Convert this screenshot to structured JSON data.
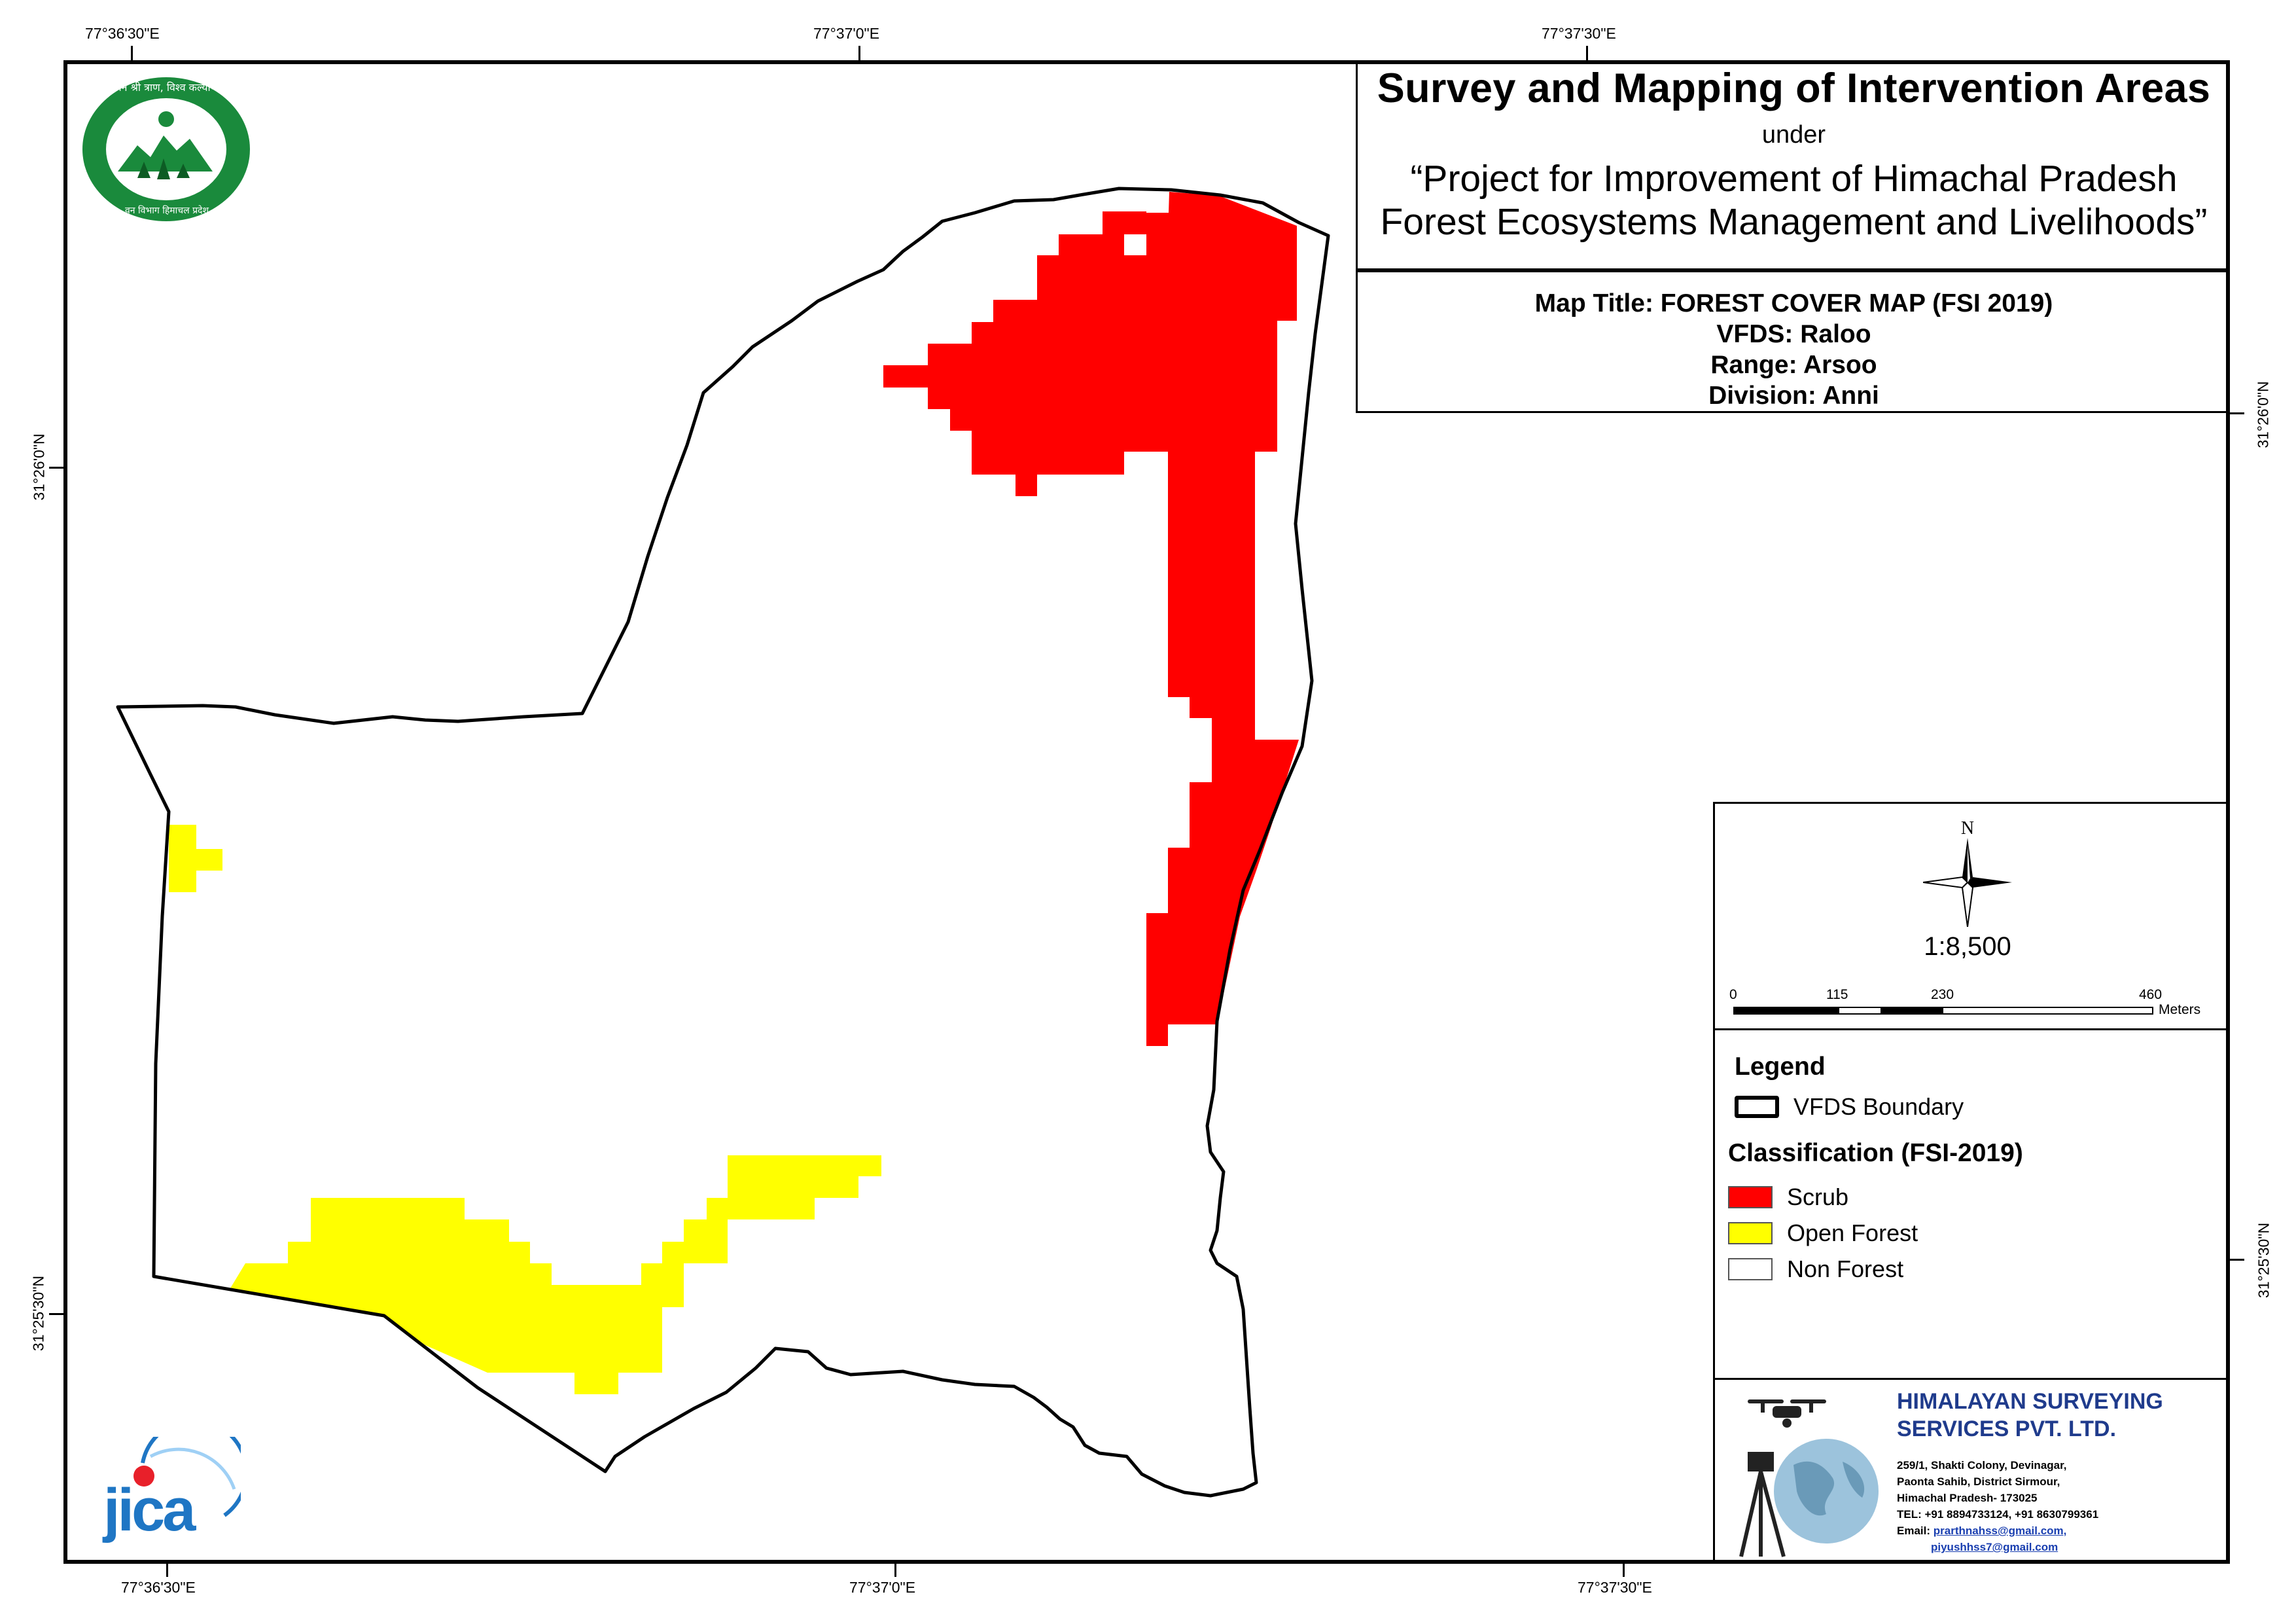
{
  "coords": {
    "top": [
      "77°36'30\"E",
      "77°37'0\"E",
      "77°37'30\"E"
    ],
    "bottom": [
      "77°36'30\"E",
      "77°37'0\"E",
      "77°37'30\"E"
    ],
    "left": [
      "31°26'0\"N",
      "31°25'30\"N"
    ],
    "right": [
      "31°26'0\"N",
      "31°25'30\"N"
    ]
  },
  "title": {
    "main": "Survey and Mapping of Intervention Areas",
    "under": "under",
    "project_line1": "“Project for Improvement of Himachal Pradesh",
    "project_line2": "Forest Ecosystems Management and Livelihoods”"
  },
  "info": {
    "map_title": "Map Title: FOREST COVER MAP (FSI 2019)",
    "vfds": "VFDS: Raloo",
    "range": "Range: Arsoo",
    "division": "Division: Anni"
  },
  "north_label": "N",
  "scale": {
    "ratio": "1:8,500",
    "ticks": [
      "0",
      "115",
      "230",
      "460"
    ],
    "unit": "Meters"
  },
  "legend": {
    "title": "Legend",
    "boundary_label": "VFDS Boundary",
    "classification_title": "Classification (FSI-2019)",
    "classes": [
      {
        "label": "Scrub",
        "color": "#ff0000"
      },
      {
        "label": "Open Forest",
        "color": "#ffff00"
      },
      {
        "label": "Non Forest",
        "color": "#ffffff"
      }
    ]
  },
  "company": {
    "name_line1": "HIMALAYAN SURVEYING",
    "name_line2": "SERVICES PVT. LTD.",
    "addr1": "259/1, Shakti Colony, Devinagar,",
    "addr2": "Paonta Sahib, District Sirmour,",
    "addr3": "Himachal Pradesh- 173025",
    "tel": "TEL: +91 8894733124, +91 8630799361",
    "email_label": "Email:",
    "email1": "prarthnahss@gmail.com,",
    "email2": "piyushhss7@gmail.com"
  },
  "logos": {
    "hp_forest_text": "वन श्री त्राण, विश्व कल्याण",
    "hp_forest_bottom": "वन विभाग हिमाचल प्रदेश",
    "jica": "JICA"
  }
}
